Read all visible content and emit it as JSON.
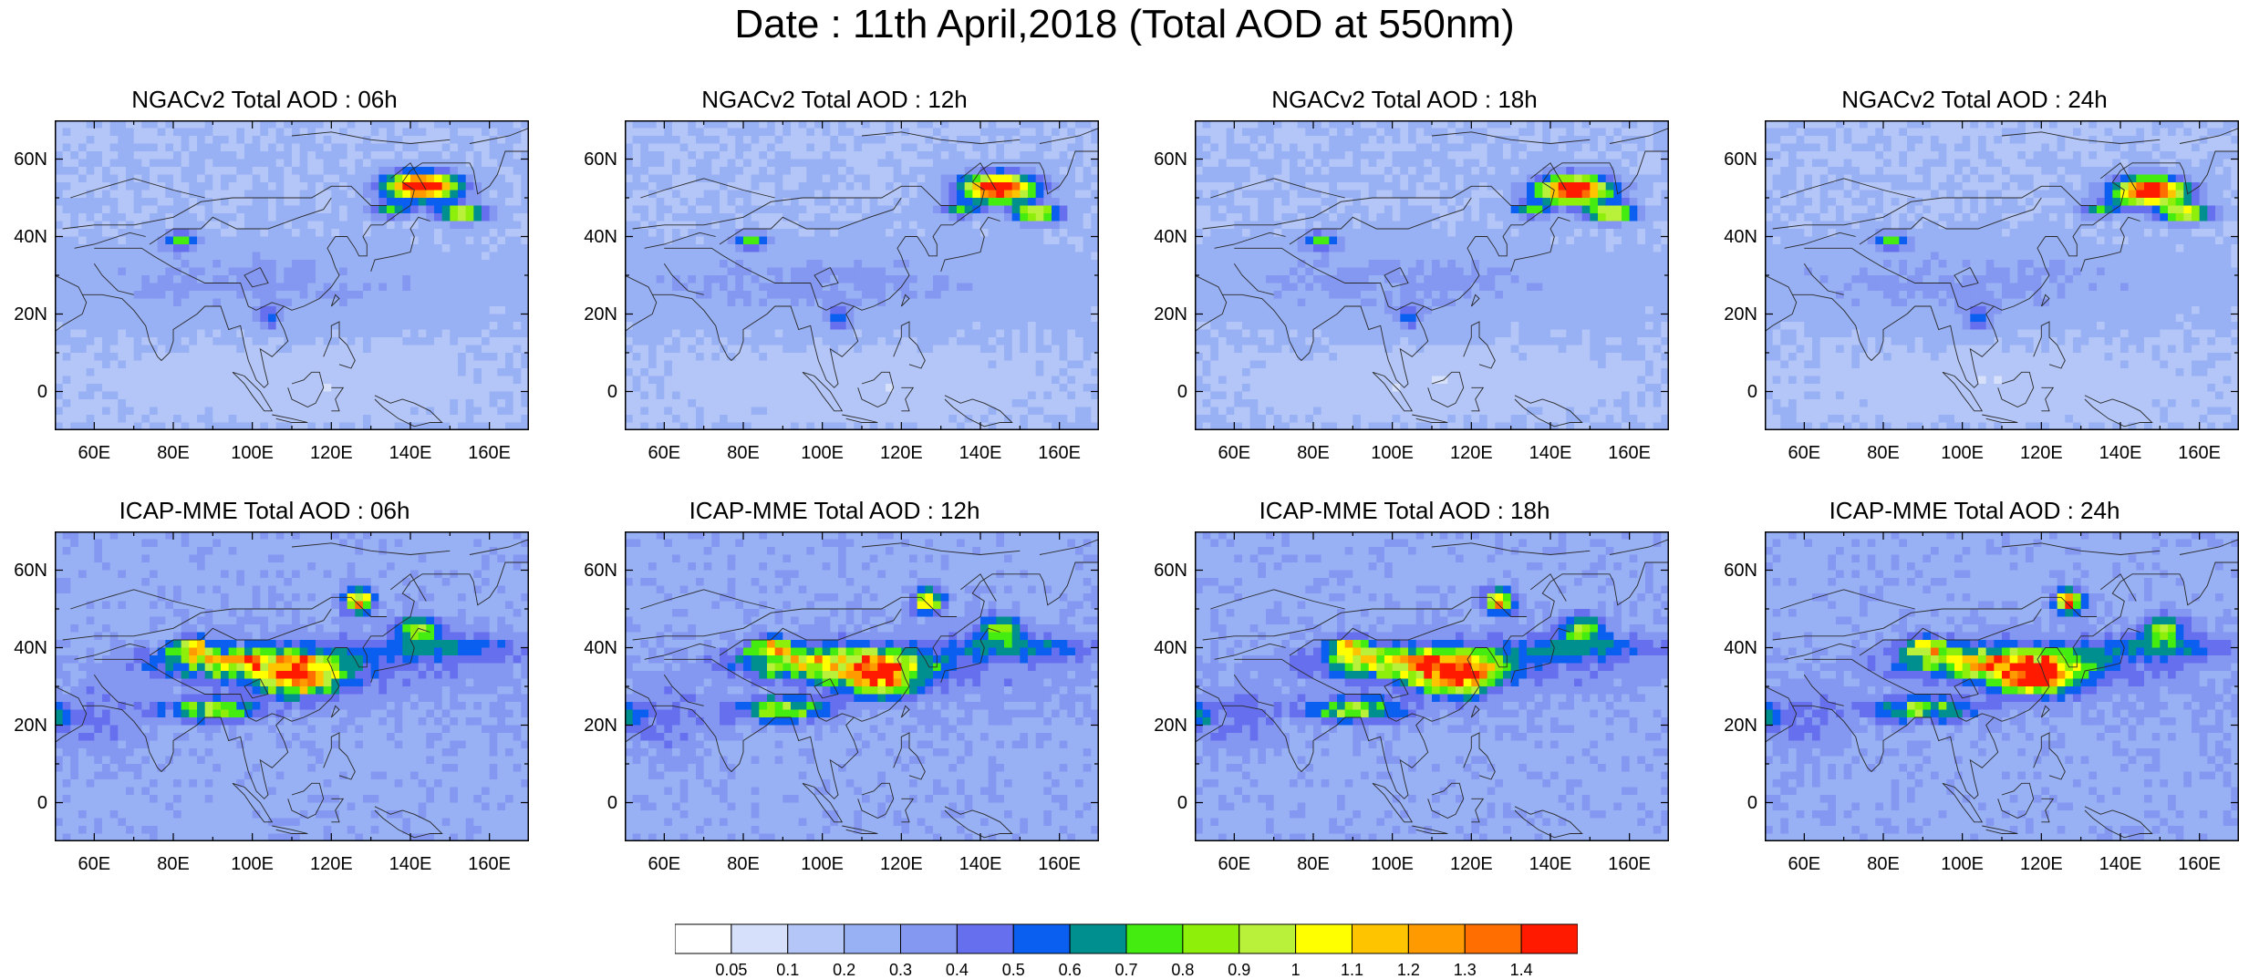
{
  "title": "Date : 11th April,2018 (Total AOD at 550nm)",
  "y_tick_labels": [
    "60N",
    "40N",
    "20N",
    "0"
  ],
  "x_tick_labels": [
    "60E",
    "80E",
    "100E",
    "120E",
    "140E",
    "160E"
  ],
  "panels": [
    {
      "title": "NGACv2 Total AOD : 06h",
      "model": "NGACv2",
      "lead": "06h"
    },
    {
      "title": "NGACv2 Total AOD : 12h",
      "model": "NGACv2",
      "lead": "12h"
    },
    {
      "title": "NGACv2 Total AOD : 18h",
      "model": "NGACv2",
      "lead": "18h"
    },
    {
      "title": "NGACv2 Total AOD : 24h",
      "model": "NGACv2",
      "lead": "24h"
    },
    {
      "title": "ICAP-MME Total AOD : 06h",
      "model": "ICAP-MME",
      "lead": "06h"
    },
    {
      "title": "ICAP-MME Total AOD : 12h",
      "model": "ICAP-MME",
      "lead": "12h"
    },
    {
      "title": "ICAP-MME Total AOD : 18h",
      "model": "ICAP-MME",
      "lead": "18h"
    },
    {
      "title": "ICAP-MME Total AOD : 24h",
      "model": "ICAP-MME",
      "lead": "24h"
    }
  ],
  "map_extent": {
    "lon_min": 50,
    "lon_max": 170,
    "lat_min": -10,
    "lat_max": 70
  },
  "colorbar": {
    "labels": [
      "0.05",
      "0.1",
      "0.2",
      "0.3",
      "0.4",
      "0.5",
      "0.6",
      "0.7",
      "0.8",
      "0.9",
      "1",
      "1.1",
      "1.2",
      "1.3",
      "1.4"
    ],
    "colors": [
      "#ffffff",
      "#d6e0fb",
      "#b4c6f7",
      "#98b0f4",
      "#8497f1",
      "#6670ee",
      "#0a5ff0",
      "#008f8f",
      "#44ec10",
      "#8ef00a",
      "#b8f03a",
      "#ffff00",
      "#ffc400",
      "#ff9a00",
      "#ff6e00",
      "#ff1a00"
    ]
  }
}
